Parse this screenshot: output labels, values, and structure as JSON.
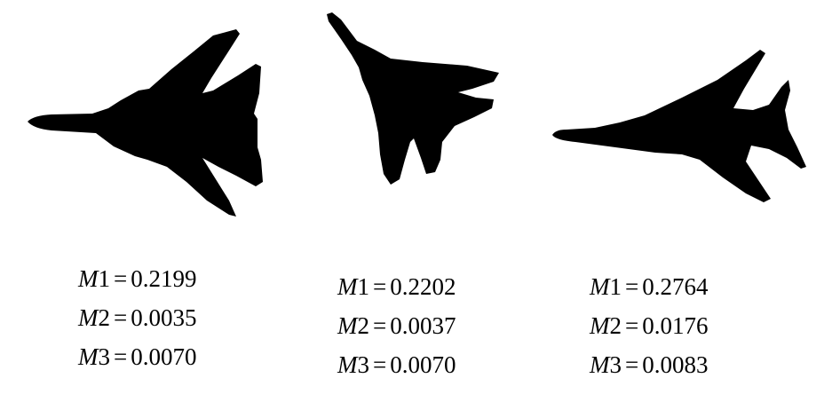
{
  "colors": {
    "background": "#ffffff",
    "silhouette": "#000000",
    "text": "#000000"
  },
  "figures": [
    {
      "shape": "jet-silhouette-swept-wings-left",
      "moments": [
        {
          "var": "M",
          "idx": "1",
          "eq": "=",
          "value": "0.2199"
        },
        {
          "var": "M",
          "idx": "2",
          "eq": "=",
          "value": "0.0035"
        },
        {
          "var": "M",
          "idx": "3",
          "eq": "=",
          "value": "0.0070"
        }
      ]
    },
    {
      "shape": "jet-silhouette-rotated",
      "moments": [
        {
          "var": "M",
          "idx": "1",
          "eq": "=",
          "value": "0.2202"
        },
        {
          "var": "M",
          "idx": "2",
          "eq": "=",
          "value": "0.0037"
        },
        {
          "var": "M",
          "idx": "3",
          "eq": "=",
          "value": "0.0070"
        }
      ]
    },
    {
      "shape": "jet-silhouette-swept-wings-right",
      "moments": [
        {
          "var": "M",
          "idx": "1",
          "eq": "=",
          "value": "0.2764"
        },
        {
          "var": "M",
          "idx": "2",
          "eq": "=",
          "value": "0.0176"
        },
        {
          "var": "M",
          "idx": "3",
          "eq": "=",
          "value": "0.0083"
        }
      ]
    }
  ]
}
